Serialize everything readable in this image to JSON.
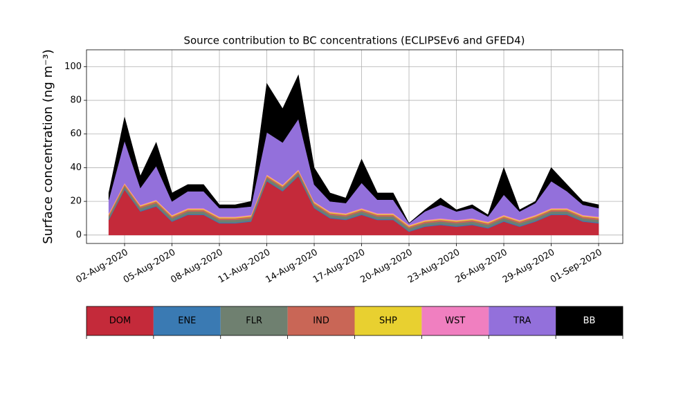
{
  "chart_data": {
    "type": "stacked_area",
    "title": "Source contribution to BC concentrations (ECLIPSEv6 and GFED4)",
    "y_label": "Surface concentration (ng m⁻³)",
    "x": [
      "2020-08-01",
      "2020-08-02",
      "2020-08-03",
      "2020-08-04",
      "2020-08-05",
      "2020-08-06",
      "2020-08-07",
      "2020-08-08",
      "2020-08-09",
      "2020-08-10",
      "2020-08-11",
      "2020-08-12",
      "2020-08-13",
      "2020-08-14",
      "2020-08-15",
      "2020-08-16",
      "2020-08-17",
      "2020-08-18",
      "2020-08-19",
      "2020-08-20",
      "2020-08-21",
      "2020-08-22",
      "2020-08-23",
      "2020-08-24",
      "2020-08-25",
      "2020-08-26",
      "2020-08-27",
      "2020-08-28",
      "2020-08-29",
      "2020-08-30",
      "2020-08-31",
      "2020-09-01"
    ],
    "series": [
      {
        "name": "DOM",
        "color": "#c42a3a",
        "values": [
          9,
          27,
          14,
          17,
          8,
          12,
          12,
          7,
          7,
          8,
          32,
          26,
          35,
          16,
          10,
          9,
          12,
          9,
          9,
          2,
          5,
          6,
          5,
          6,
          4,
          8,
          5,
          8,
          12,
          12,
          8,
          7
        ]
      },
      {
        "name": "ENE",
        "color": "#3a7ab3",
        "values": [
          0.5,
          0.5,
          0.5,
          0.5,
          0.5,
          0.5,
          0.5,
          0.5,
          0.5,
          0.5,
          0.5,
          0.5,
          0.5,
          0.5,
          0.5,
          0.5,
          0.5,
          0.5,
          0.5,
          0.5,
          0.5,
          0.5,
          0.5,
          0.5,
          0.5,
          0.5,
          0.5,
          0.5,
          0.5,
          0.5,
          0.5,
          0.5
        ]
      },
      {
        "name": "FLR",
        "color": "#6f8070",
        "values": [
          1.5,
          1.5,
          1.5,
          1.5,
          1.5,
          1.5,
          1.5,
          1.5,
          1.5,
          1.5,
          1.5,
          1.5,
          1.5,
          1.5,
          1.5,
          1.5,
          1.5,
          1.5,
          1.5,
          1.5,
          1.5,
          1.5,
          1.5,
          1.5,
          1.5,
          1.5,
          1.5,
          1.5,
          1.5,
          1.5,
          1.5,
          1.5
        ]
      },
      {
        "name": "IND",
        "color": "#c96656",
        "values": [
          1,
          1,
          1,
          1,
          1,
          1,
          1,
          1,
          1,
          1,
          1,
          1,
          1,
          1,
          1,
          1,
          1,
          1,
          1,
          1,
          1,
          1,
          1,
          1,
          1,
          1,
          1,
          1,
          1,
          1,
          1,
          1
        ]
      },
      {
        "name": "SHP",
        "color": "#e8d030",
        "values": [
          0.5,
          0.5,
          0.5,
          0.5,
          0.5,
          0.5,
          0.5,
          0.5,
          0.5,
          0.5,
          0.5,
          0.5,
          0.5,
          0.5,
          0.5,
          0.5,
          0.5,
          0.5,
          0.5,
          0.5,
          0.5,
          0.5,
          0.5,
          0.5,
          0.5,
          0.5,
          0.5,
          0.5,
          0.5,
          0.5,
          0.5,
          0.5
        ]
      },
      {
        "name": "WST",
        "color": "#f07fc0",
        "values": [
          0.5,
          0.5,
          0.5,
          0.5,
          0.5,
          0.5,
          0.5,
          0.5,
          0.5,
          0.5,
          0.5,
          0.5,
          0.5,
          0.5,
          0.5,
          0.5,
          0.5,
          0.5,
          0.5,
          0.5,
          0.5,
          0.5,
          0.5,
          0.5,
          0.5,
          0.5,
          0.5,
          0.5,
          0.5,
          0.5,
          0.5,
          0.5
        ]
      },
      {
        "name": "TRA",
        "color": "#9370db",
        "values": [
          8,
          25,
          10,
          20,
          8,
          10,
          10,
          5,
          5,
          5,
          25,
          25,
          30,
          10,
          6,
          6,
          15,
          8,
          8,
          1,
          5,
          8,
          5,
          6,
          3,
          12,
          5,
          7,
          16,
          10,
          6,
          5
        ]
      },
      {
        "name": "BB",
        "color": "#000000",
        "values": [
          4,
          14,
          7,
          14,
          5,
          4,
          4,
          2,
          2,
          3,
          29,
          20,
          26,
          10,
          5,
          3,
          14,
          4,
          4,
          0,
          1,
          4,
          1,
          2,
          1,
          16,
          1,
          1,
          8,
          4,
          2,
          2
        ]
      }
    ],
    "xlim": [
      "2020-07-30T14:10:00Z",
      "2020-09-02T12:45:00Z"
    ],
    "xticks": [
      {
        "value": "2020-08-02",
        "label": "02-Aug-2020"
      },
      {
        "value": "2020-08-05",
        "label": "05-Aug-2020"
      },
      {
        "value": "2020-08-08",
        "label": "08-Aug-2020"
      },
      {
        "value": "2020-08-11",
        "label": "11-Aug-2020"
      },
      {
        "value": "2020-08-14",
        "label": "14-Aug-2020"
      },
      {
        "value": "2020-08-17",
        "label": "17-Aug-2020"
      },
      {
        "value": "2020-08-20",
        "label": "20-Aug-2020"
      },
      {
        "value": "2020-08-23",
        "label": "23-Aug-2020"
      },
      {
        "value": "2020-08-26",
        "label": "26-Aug-2020"
      },
      {
        "value": "2020-08-29",
        "label": "29-Aug-2020"
      },
      {
        "value": "2020-09-01",
        "label": "01-Sep-2020"
      }
    ],
    "ylim": [
      -5,
      110
    ],
    "yticks": [
      0,
      20,
      40,
      60,
      80,
      100
    ],
    "grid": true
  }
}
